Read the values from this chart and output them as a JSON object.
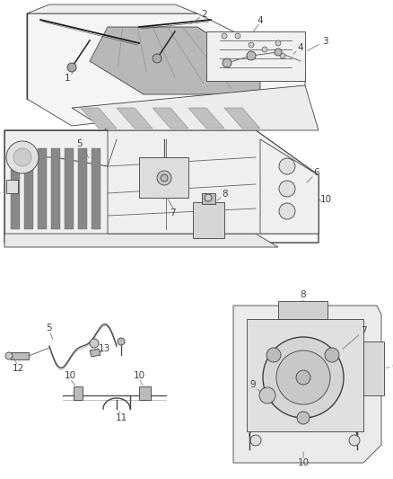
{
  "bg": "#ffffff",
  "fg": "#404040",
  "label_color": "#404040",
  "fig_w": 4.38,
  "fig_h": 5.33,
  "dpi": 100,
  "label_fs": 7.5,
  "thin_lw": 0.6,
  "med_lw": 1.0,
  "thick_lw": 1.8,
  "leader_color": "#777777",
  "leader_lw": 0.6,
  "part_color": "#d8d8d8",
  "outline_color": "#404040"
}
